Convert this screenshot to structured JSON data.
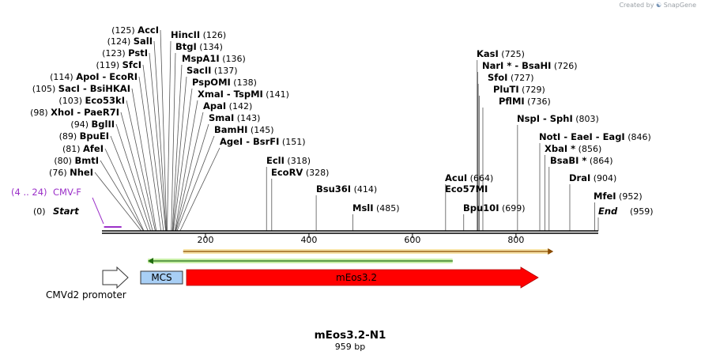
{
  "header": {
    "watermark_prefix": "Created by",
    "watermark_brand": "SnapGene"
  },
  "plasmid": {
    "name": "mEos3.2-N1",
    "length_label": "959 bp",
    "length": 959
  },
  "sites": [
    {
      "name": "NheI",
      "pos": 76,
      "label": "(76)"
    },
    {
      "name": "BmtI",
      "pos": 80,
      "label": "(80)"
    },
    {
      "name": "AfeI",
      "pos": 81,
      "label": "(81)"
    },
    {
      "name": "BpuEI",
      "pos": 89,
      "label": "(89)"
    },
    {
      "name": "BglII",
      "pos": 94,
      "label": "(94)"
    },
    {
      "name": "XhoI",
      "alt": "PaeR7I",
      "pos": 98,
      "label": "(98)"
    },
    {
      "name": "Eco53kI",
      "pos": 103,
      "label": "(103)"
    },
    {
      "name": "SacI",
      "alt": "BsiHKAI",
      "pos": 105,
      "label": "(105)"
    },
    {
      "name": "ApoI",
      "alt": "EcoRI",
      "pos": 114,
      "label": "(114)"
    },
    {
      "name": "SfcI",
      "pos": 119,
      "label": "(119)"
    },
    {
      "name": "PstI",
      "pos": 123,
      "label": "(123)"
    },
    {
      "name": "SalI",
      "pos": 124,
      "label": "(124)"
    },
    {
      "name": "AccI",
      "pos": 125,
      "label": "(125)"
    },
    {
      "name": "HincII",
      "pos": 126,
      "label": "(126)"
    },
    {
      "name": "BtgI",
      "pos": 134,
      "label": "(134)"
    },
    {
      "name": "MspA1I",
      "pos": 136,
      "label": "(136)"
    },
    {
      "name": "SacII",
      "pos": 137,
      "label": "(137)"
    },
    {
      "name": "PspOMI",
      "pos": 138,
      "label": "(138)"
    },
    {
      "name": "XmaI",
      "alt": "TspMI",
      "pos": 141,
      "label": "(141)"
    },
    {
      "name": "ApaI",
      "pos": 142,
      "label": "(142)"
    },
    {
      "name": "SmaI",
      "pos": 143,
      "label": "(143)"
    },
    {
      "name": "BamHI",
      "pos": 145,
      "label": "(145)"
    },
    {
      "name": "AgeI",
      "alt": "BsrFI",
      "pos": 151,
      "label": "(151)"
    },
    {
      "name": "EclI",
      "pos": 318,
      "label": "(318)"
    },
    {
      "name": "EcoRV",
      "pos": 328,
      "label": "(328)"
    },
    {
      "name": "Bsu36I",
      "pos": 414,
      "label": "(414)"
    },
    {
      "name": "MslI",
      "pos": 485,
      "label": "(485)"
    },
    {
      "name": "AcuI",
      "pos": 664,
      "label": "(664)"
    },
    {
      "name": "Eco57MI",
      "pos": 664,
      "label": ""
    },
    {
      "name": "Bpu10I",
      "pos": 699,
      "label": "(699)"
    },
    {
      "name": "KasI",
      "pos": 725,
      "label": "(725)"
    },
    {
      "name": "NarI *",
      "alt": "BsaHI",
      "pos": 726,
      "label": "(726)"
    },
    {
      "name": "SfoI",
      "pos": 727,
      "label": "(727)"
    },
    {
      "name": "PluTI",
      "pos": 729,
      "label": "(729)"
    },
    {
      "name": "PflMI",
      "pos": 736,
      "label": "(736)"
    },
    {
      "name": "NspI",
      "alt": "SphI",
      "pos": 803,
      "label": "(803)"
    },
    {
      "name": "NotI",
      "alt": "EaeI",
      "alt2": "EagI",
      "pos": 846,
      "label": "(846)"
    },
    {
      "name": "XbaI *",
      "pos": 856,
      "label": "(856)"
    },
    {
      "name": "BsaBI *",
      "pos": 864,
      "label": "(864)"
    },
    {
      "name": "DraI",
      "pos": 904,
      "label": "(904)"
    },
    {
      "name": "MfeI",
      "pos": 952,
      "label": "(952)"
    }
  ],
  "ends": {
    "start": {
      "name": "Start",
      "pos": 0,
      "label": "(0)"
    },
    "end": {
      "name": "End",
      "pos": 959,
      "label": "(959)"
    }
  },
  "primer": {
    "name": "CMV-F",
    "range_label": "(4 .. 24)",
    "start": 4,
    "end": 24,
    "color": "#9b30c8"
  },
  "ruler": [
    200,
    400,
    600,
    800
  ],
  "features": {
    "cmv": {
      "label": "CMVd2 promoter"
    },
    "mcs": {
      "label": "MCS",
      "start": 76,
      "end": 151,
      "color": "#a8cff5"
    },
    "meos": {
      "label": "mEos3.2",
      "start": 163,
      "end": 857,
      "color": "#ff0000"
    },
    "orf_fwd": {
      "start": 163,
      "end": 857,
      "color": "#e8a23c"
    },
    "orf_rev": {
      "start": 163,
      "end": 664,
      "color": "#5cbf3a"
    }
  },
  "colors": {
    "backbone": "#000000",
    "primer": "#9b30c8"
  }
}
